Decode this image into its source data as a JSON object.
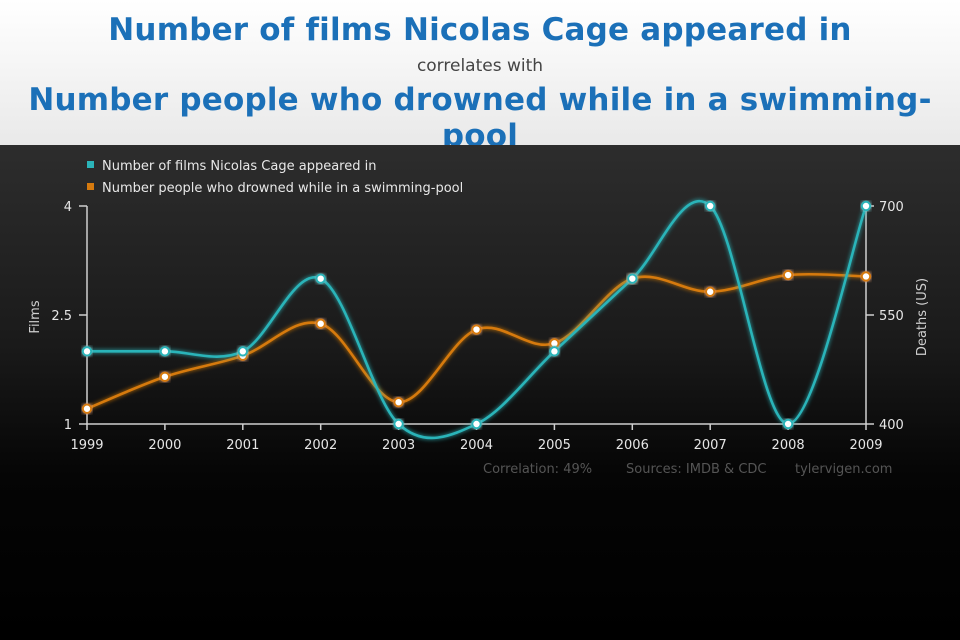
{
  "header": {
    "title_primary": "Number of films Nicolas Cage appeared in",
    "connector": "correlates with",
    "title_secondary": "Number people who drowned while in a swimming-pool"
  },
  "chart_data": {
    "type": "line",
    "x": [
      1999,
      2000,
      2001,
      2002,
      2003,
      2004,
      2005,
      2006,
      2007,
      2008,
      2009
    ],
    "series": [
      {
        "name": "Number of films Nicolas Cage appeared in",
        "axis": "left",
        "color": "#2bb4b9",
        "values": [
          2,
          2,
          2,
          3,
          1,
          1,
          2,
          3,
          4,
          1,
          4
        ]
      },
      {
        "name": "Number people who drowned while in a swimming-pool",
        "axis": "right",
        "color": "#d67a0e",
        "values": [
          421,
          465,
          494,
          538,
          430,
          530,
          511,
          600,
          582,
          605,
          603
        ]
      }
    ],
    "ylabel_left": "Films",
    "ylabel_right": "Deaths (US)",
    "ylim_left": [
      1,
      4
    ],
    "ylim_right": [
      400,
      700
    ],
    "yticks_left": [
      "1",
      "2.5",
      "4"
    ],
    "yticks_right": [
      "400",
      "550",
      "700"
    ],
    "legend_position": "top-left",
    "grid": false
  },
  "footer": {
    "correlation": "Correlation: 49%",
    "sources": "Sources: IMDB & CDC",
    "site": "tylervigen.com"
  }
}
